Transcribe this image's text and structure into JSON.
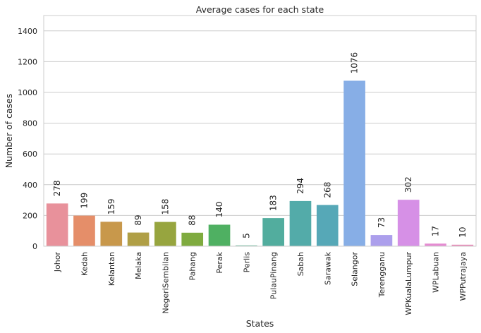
{
  "chart_data": {
    "type": "bar",
    "title": "Average cases for each state",
    "xlabel": "States",
    "ylabel": "Number of cases",
    "ylim": [
      0,
      1500
    ],
    "yticks": [
      0,
      200,
      400,
      600,
      800,
      1000,
      1200,
      1400
    ],
    "grid": true,
    "categories": [
      "Johor",
      "Kedah",
      "Kelantan",
      "Melaka",
      "NegeriSembilan",
      "Pahang",
      "Perak",
      "Perlis",
      "PulauPinang",
      "Sabah",
      "Sarawak",
      "Selangor",
      "Terengganu",
      "WPKualaLumpur",
      "WPLabuan",
      "WPPutrajaya"
    ],
    "values": [
      278,
      199,
      159,
      89,
      158,
      88,
      140,
      5,
      183,
      294,
      268,
      1076,
      73,
      302,
      17,
      10
    ],
    "colors": [
      "#e8919b",
      "#e58e69",
      "#c8984b",
      "#b09f46",
      "#97a53f",
      "#7fab3f",
      "#4fb062",
      "#50af8b",
      "#52ad9e",
      "#53aba9",
      "#56a8b7",
      "#87aee6",
      "#ac9fec",
      "#d690e6",
      "#e58cd2",
      "#e88bb8"
    ]
  }
}
